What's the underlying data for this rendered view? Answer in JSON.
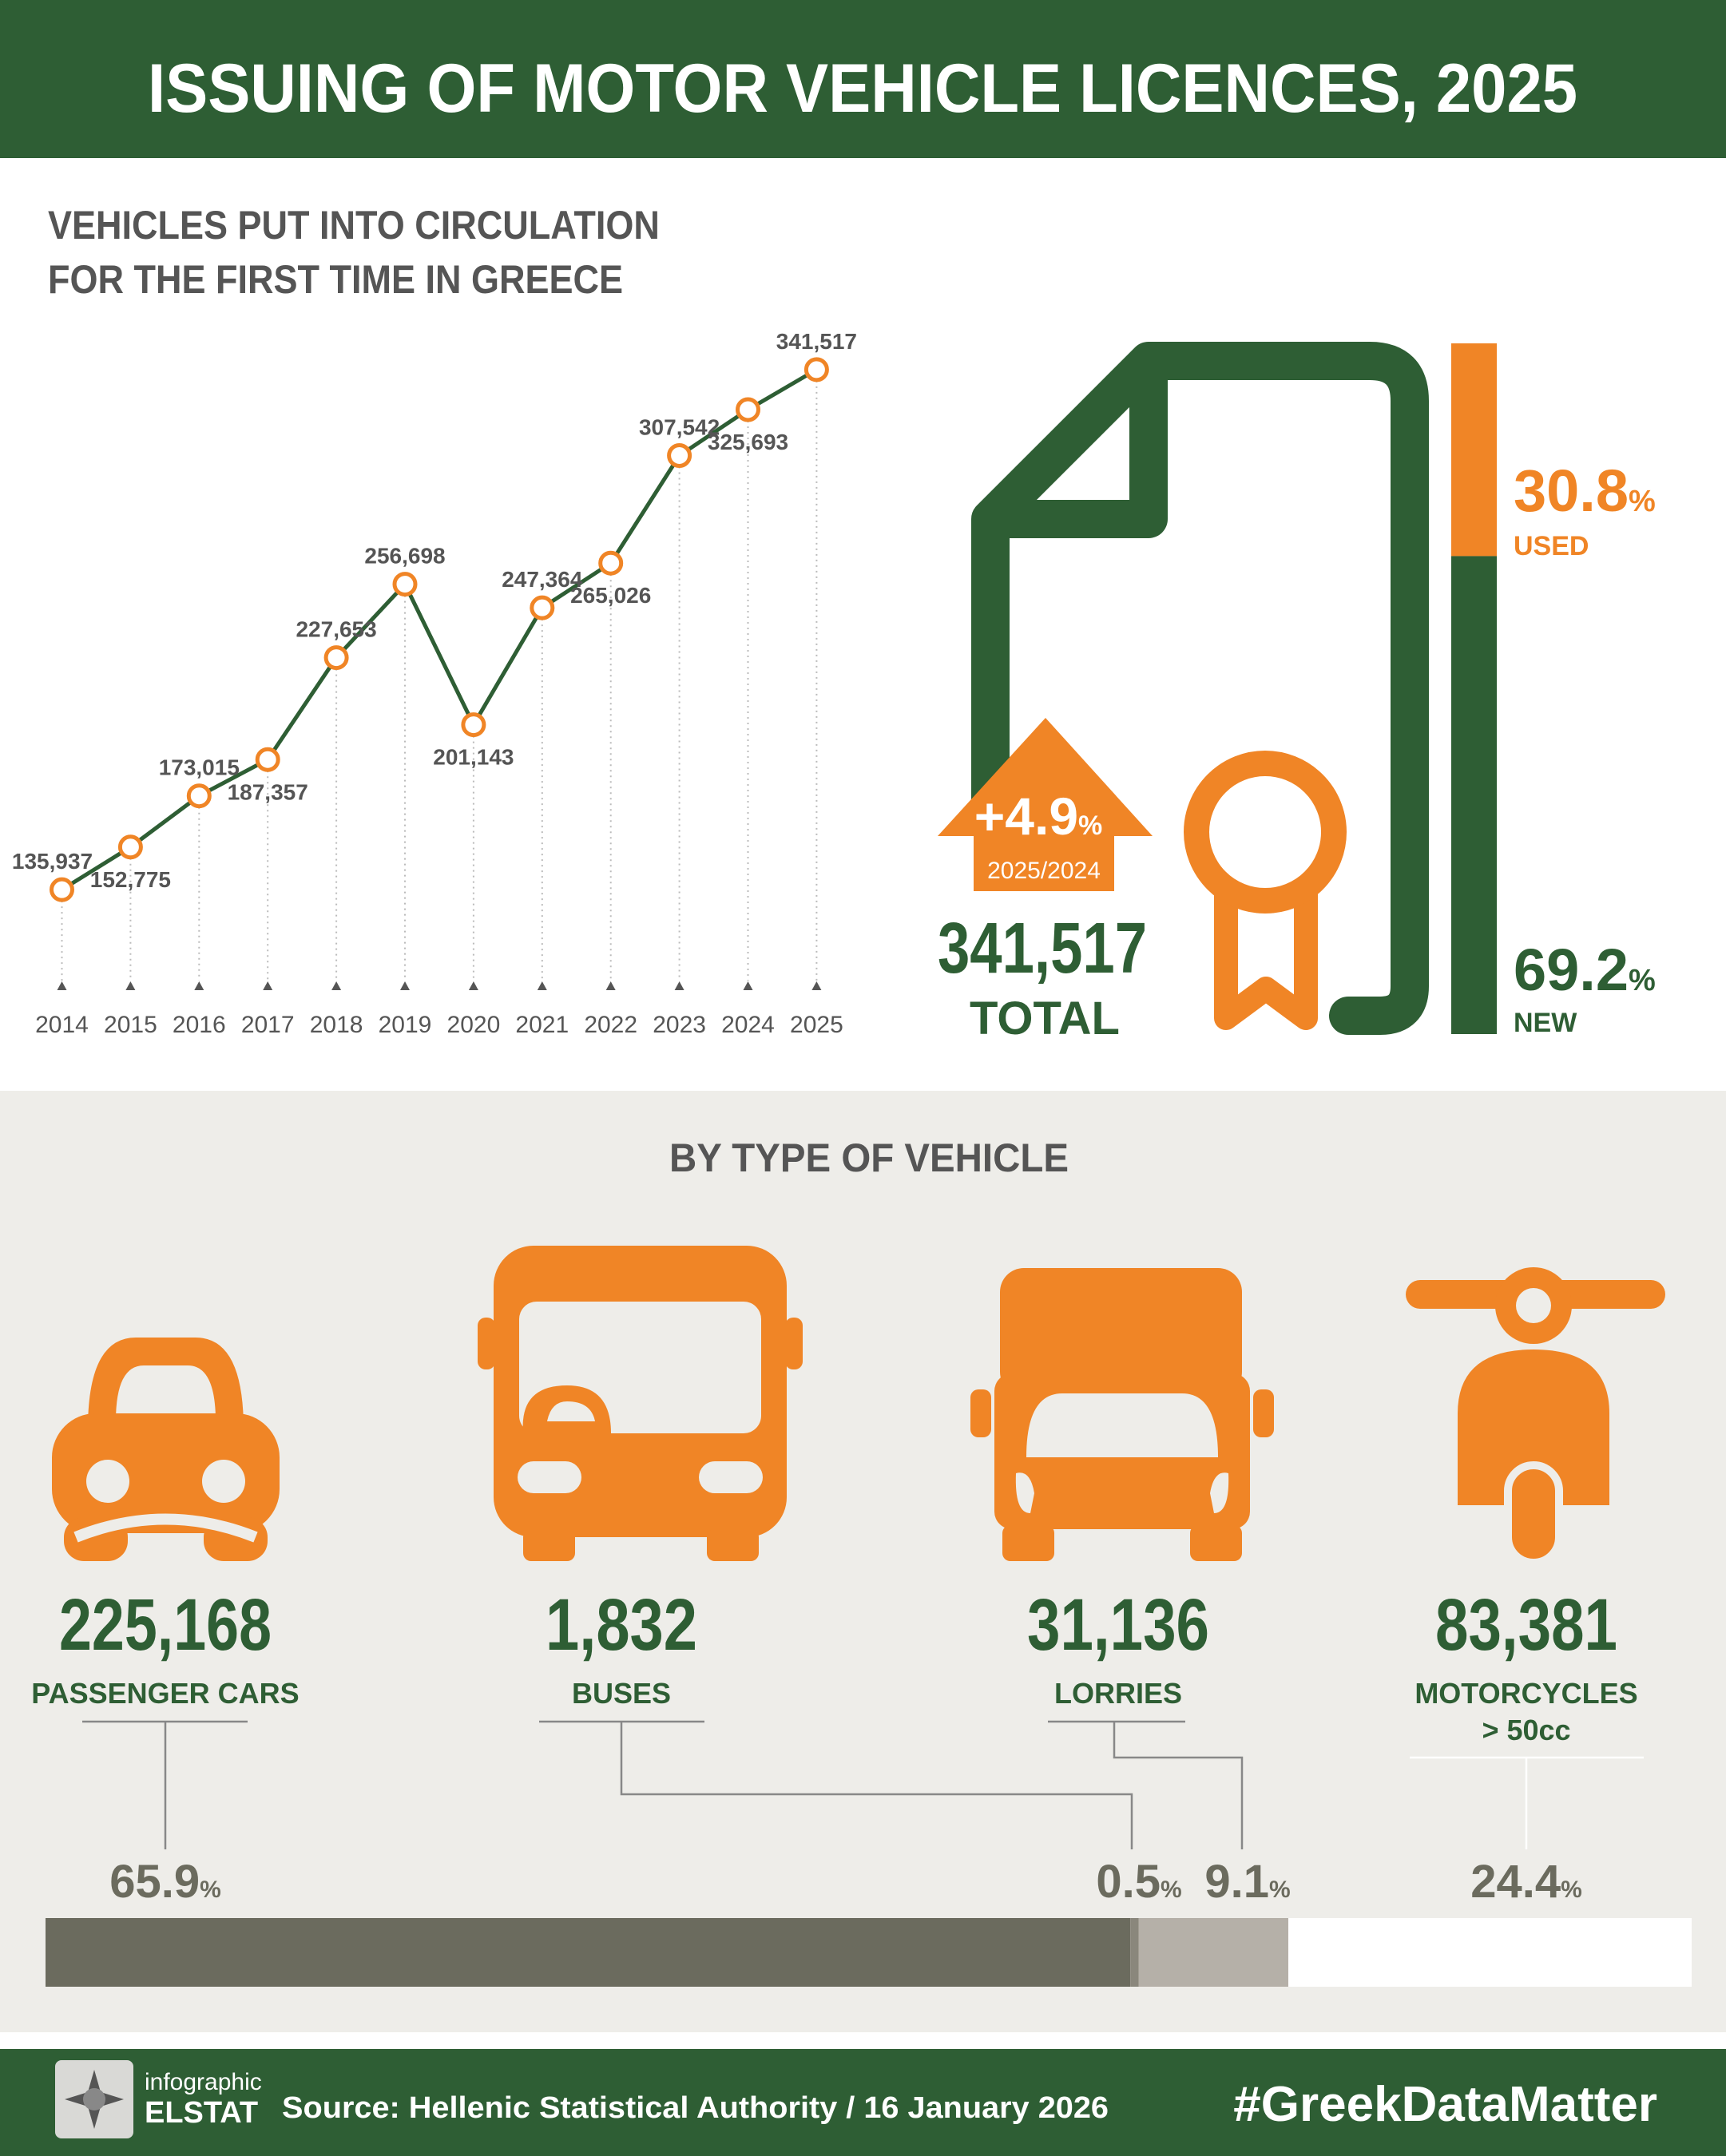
{
  "header": {
    "title": "ISSUING OF MOTOR VEHICLE LICENCES, 2025"
  },
  "chart_data": [
    {
      "type": "line",
      "title": "VEHICLES PUT INTO CIRCULATION FOR THE FIRST TIME IN GREECE",
      "categories": [
        "2014",
        "2015",
        "2016",
        "2017",
        "2018",
        "2019",
        "2020",
        "2021",
        "2022",
        "2023",
        "2024",
        "2025"
      ],
      "values": [
        135937,
        152775,
        173015,
        187357,
        227653,
        256698,
        201143,
        247364,
        265026,
        307542,
        325693,
        341517
      ],
      "value_labels": [
        "135,937",
        "152,775",
        "173,015",
        "187,357",
        "227,653",
        "256,698",
        "201,143",
        "247,364",
        "265,026",
        "307,542",
        "325,693",
        "341,517"
      ],
      "color": "#2e5e34",
      "marker_color": "#f08526",
      "ylim": [
        100000,
        350000
      ]
    },
    {
      "type": "bar",
      "orientation": "horizontal",
      "stacked": true,
      "title": "BY TYPE OF VEHICLE",
      "categories": [
        "PASSENGER CARS",
        "BUSES",
        "LORRIES",
        "MOTORCYCLES > 50cc"
      ],
      "values": [
        65.9,
        0.5,
        9.1,
        24.4
      ],
      "unit": "%",
      "colors": [
        "#6b6b5e",
        "#8a877c",
        "#b5b0a8",
        "#ffffff"
      ],
      "counts": [
        225168,
        1832,
        31136,
        83381
      ],
      "count_labels": [
        "225,168",
        "1,832",
        "31,136",
        "83,381"
      ],
      "xlim": [
        0,
        100
      ]
    }
  ],
  "summary": {
    "change": 4.9,
    "change_label": "+4.9",
    "unit": "%",
    "period": "2025/2024",
    "total": 341517,
    "total_label": "341,517",
    "total_text": "TOTAL",
    "used": 30.8,
    "used_text": "USED",
    "new": 69.2,
    "new_text": "NEW",
    "used_color": "#f08526",
    "new_color": "#2e5e34"
  },
  "footer": {
    "logo_top": "infographic",
    "logo_bottom": "ELSTAT",
    "source": "Source: Hellenic Statistical Authority / 16 January 2026",
    "hashtag": "#GreekDataMatter"
  }
}
